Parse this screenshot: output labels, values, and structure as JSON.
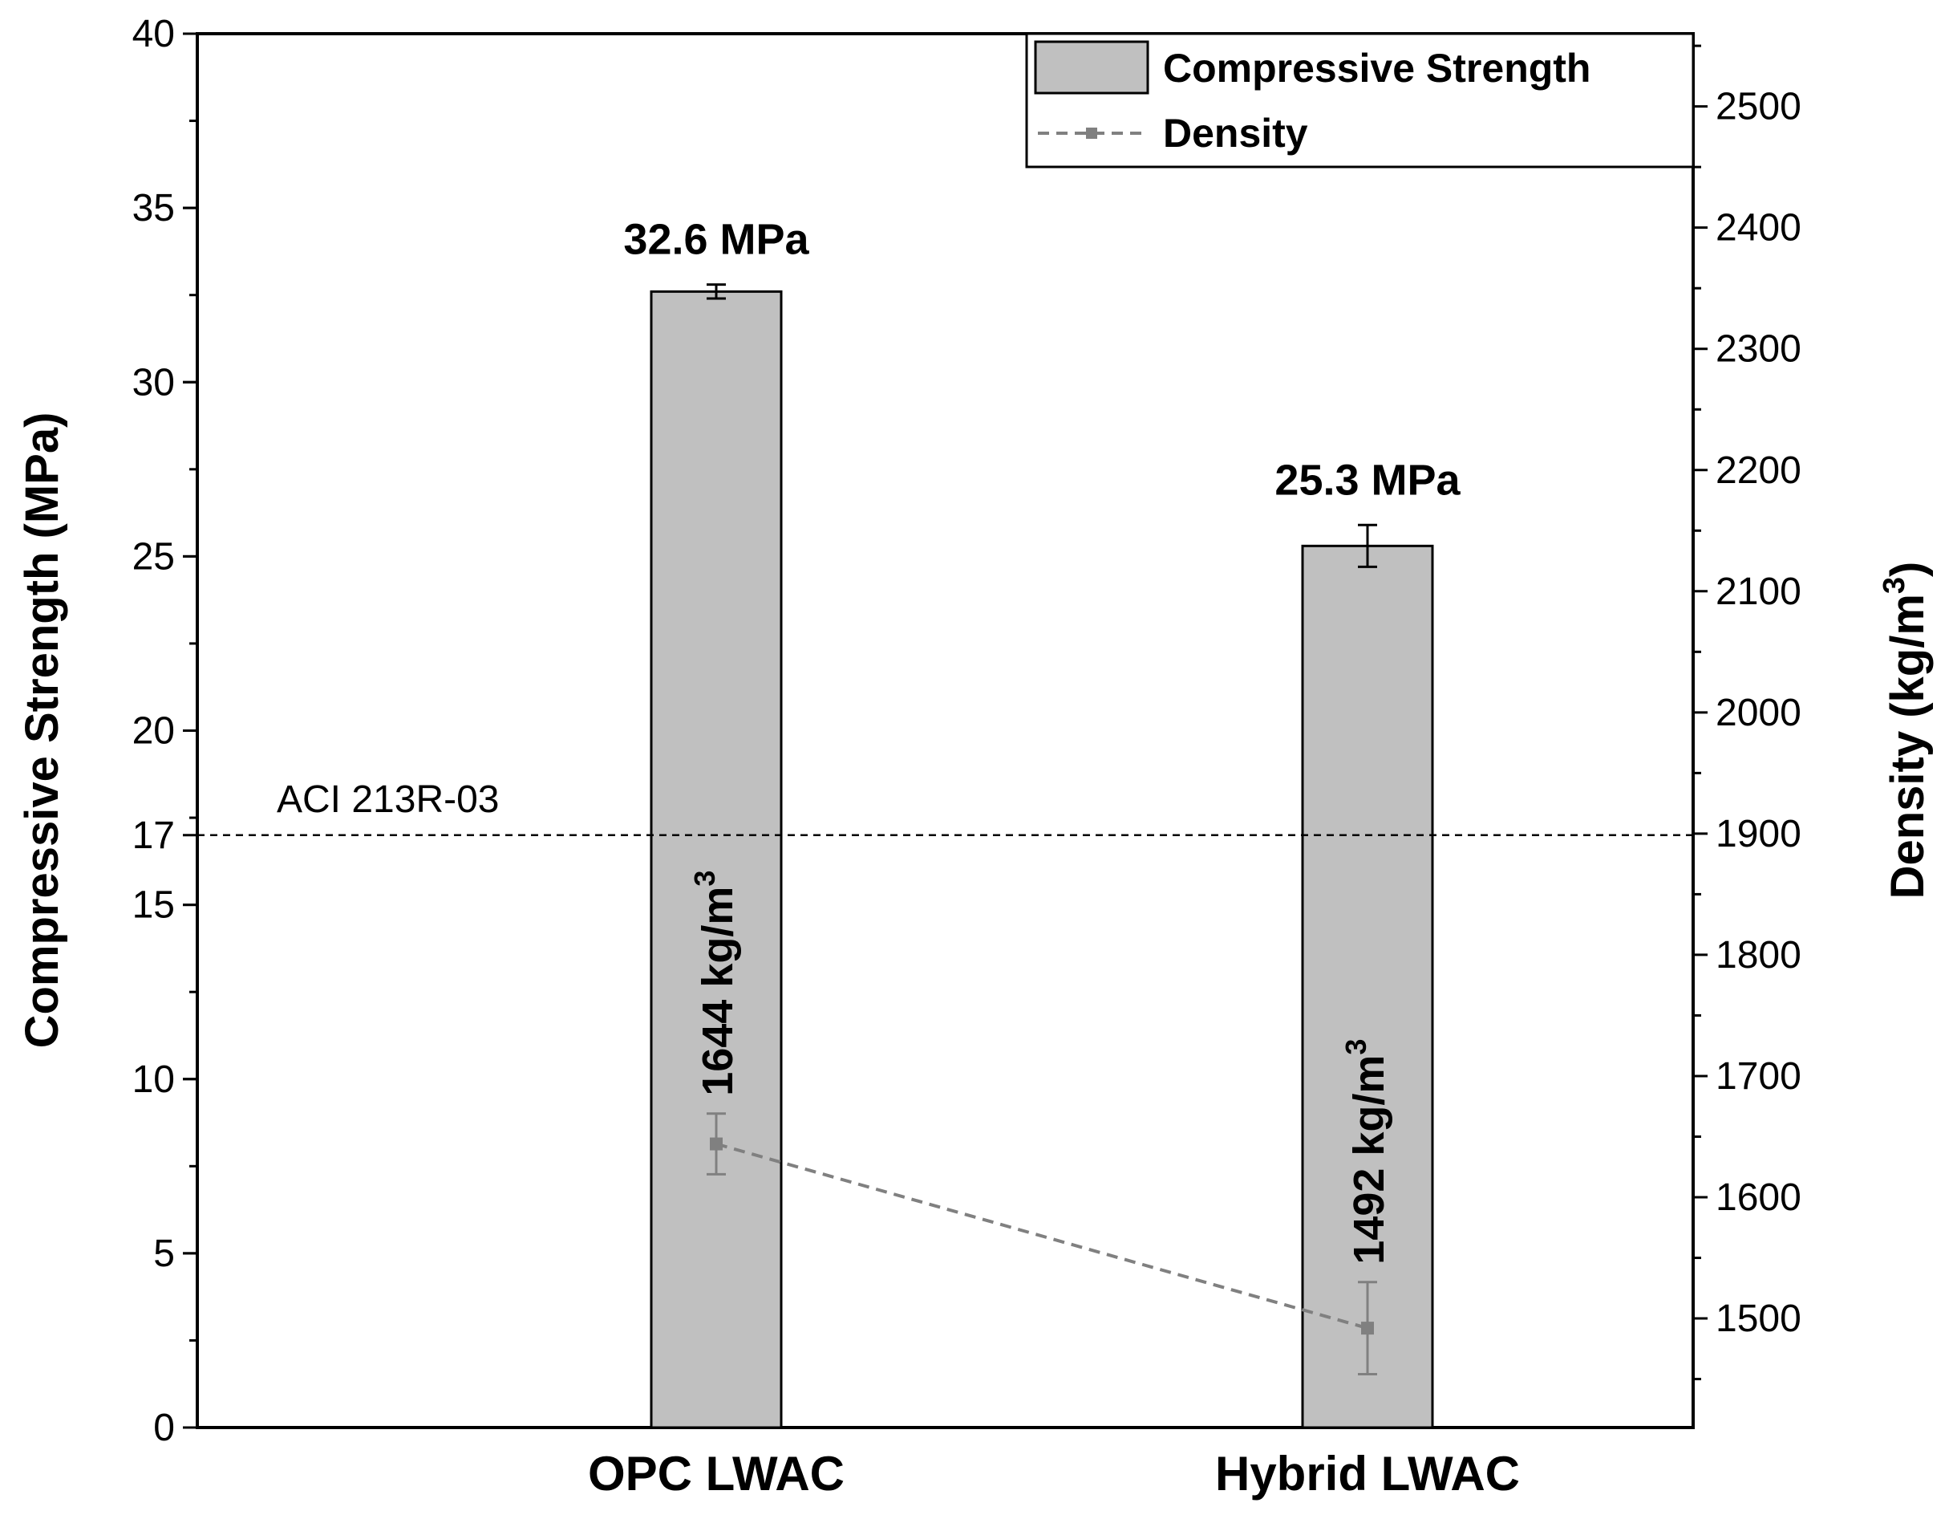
{
  "chart_data": {
    "type": "bar",
    "categories": [
      "OPC LWAC",
      "Hybrid LWAC"
    ],
    "series": [
      {
        "name": "Compressive Strength",
        "axis": "left",
        "kind": "bar",
        "values": [
          32.6,
          25.3
        ],
        "errors": [
          0.2,
          0.6
        ],
        "labels": [
          "32.6 MPa",
          "25.3 MPa"
        ],
        "color": "#c0c0c0"
      },
      {
        "name": "Density",
        "axis": "right",
        "kind": "line-dashed",
        "values": [
          1644,
          1492
        ],
        "errors": [
          25,
          38
        ],
        "labels": [
          "1644 kg/m",
          "1492 kg/m"
        ],
        "label_superscript": "3",
        "color": "#808080"
      }
    ],
    "y_left": {
      "label": "Compressive Strength (MPa)",
      "ylim": [
        0,
        40
      ],
      "ticks": [
        0,
        5,
        10,
        15,
        20,
        25,
        30,
        35,
        40
      ],
      "extra_ticks": [
        17
      ]
    },
    "y_right": {
      "label_main": "Density (kg/m",
      "label_sup": "3",
      "label_close": ")",
      "ylim": [
        1410,
        2560
      ],
      "ticks": [
        1500,
        1600,
        1700,
        1800,
        1900,
        2000,
        2100,
        2200,
        2300,
        2400,
        2500
      ]
    },
    "reference_line": {
      "value": 17,
      "label": "ACI 213R-03",
      "style": "dashed"
    },
    "legend": {
      "position": "top-right",
      "entries": [
        "Compressive Strength",
        "Density"
      ]
    }
  }
}
